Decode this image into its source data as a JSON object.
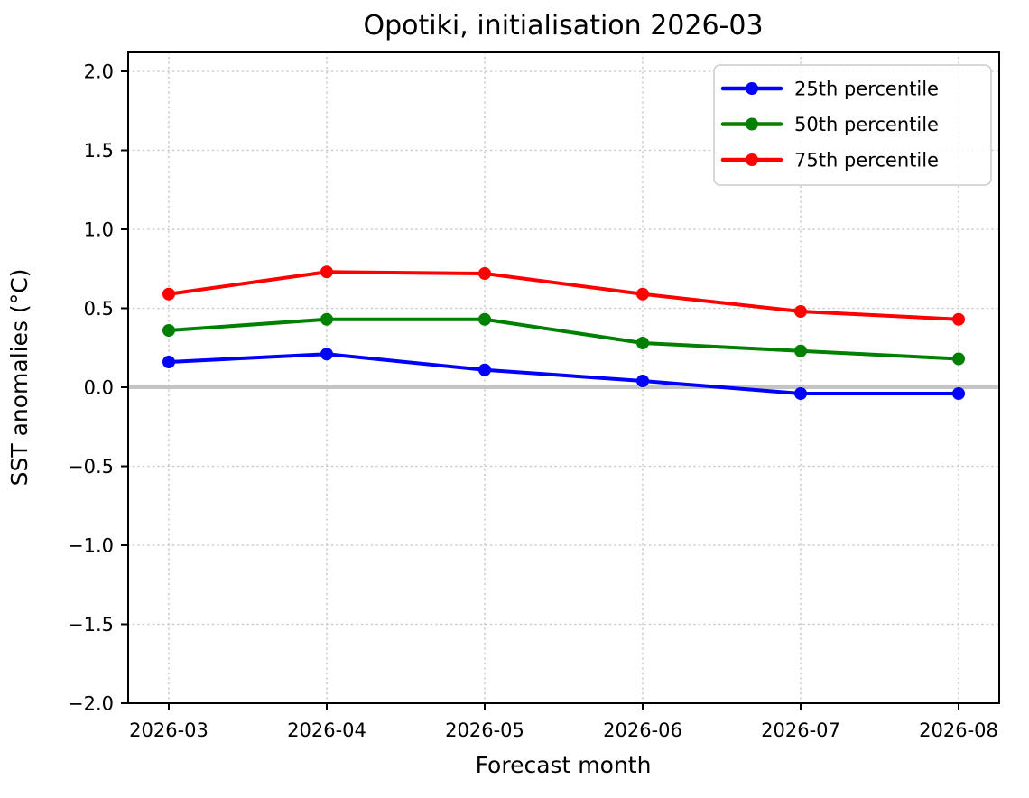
{
  "chart_data": {
    "type": "line",
    "title": "Opotiki, initialisation 2026-03",
    "xlabel": "Forecast month",
    "ylabel": "SST anomalies (°C)",
    "categories": [
      "2026-03",
      "2026-04",
      "2026-05",
      "2026-06",
      "2026-07",
      "2026-08"
    ],
    "series": [
      {
        "name": "25th percentile",
        "color": "#0000ff",
        "values": [
          0.16,
          0.21,
          0.11,
          0.04,
          -0.04,
          -0.04
        ]
      },
      {
        "name": "50th percentile",
        "color": "#008000",
        "values": [
          0.36,
          0.43,
          0.43,
          0.28,
          0.23,
          0.18
        ]
      },
      {
        "name": "75th percentile",
        "color": "#ff0000",
        "values": [
          0.59,
          0.73,
          0.72,
          0.59,
          0.48,
          0.43
        ]
      }
    ],
    "ylim": [
      -2.0,
      2.12
    ],
    "yticks": {
      "values": [
        2.0,
        1.5,
        1.0,
        0.5,
        0.0,
        -0.5,
        -1.0,
        -1.5,
        -2.0
      ],
      "labels": [
        "2.0",
        "1.5",
        "1.0",
        "0.5",
        "0.0",
        "−0.5",
        "−1.0",
        "−1.5",
        "−2.0"
      ]
    },
    "grid": {
      "visible": true,
      "style": "dotted",
      "color": "#c9c9c9"
    },
    "zero_line": {
      "value": 0.0,
      "color": "#c4c4c4"
    },
    "legend": {
      "position": "upper right",
      "items": [
        "25th percentile",
        "50th percentile",
        "75th percentile"
      ]
    }
  }
}
